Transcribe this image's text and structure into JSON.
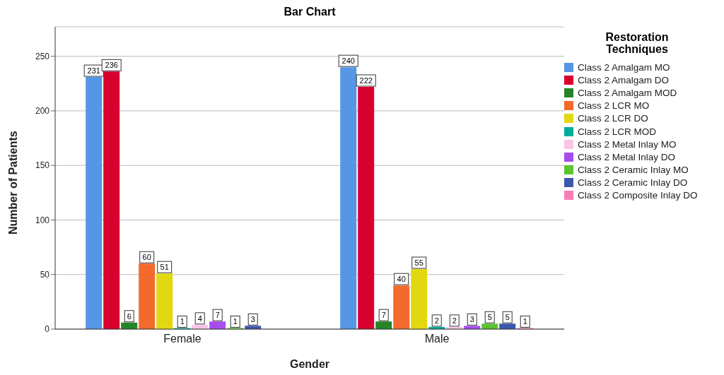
{
  "chart_data": {
    "type": "bar",
    "title": "Bar Chart",
    "xlabel": "Gender",
    "ylabel": "Number of Patients",
    "legend_title": "Restoration Techniques",
    "categories": [
      "Female",
      "Male"
    ],
    "series": [
      {
        "name": "Class 2 Amalgam MO",
        "color": "#5596e6",
        "values": [
          231,
          240
        ]
      },
      {
        "name": "Class 2 Amalgam DO",
        "color": "#d8002f",
        "values": [
          236,
          222
        ]
      },
      {
        "name": "Class 2 Amalgam MOD",
        "color": "#258427",
        "values": [
          6,
          7
        ]
      },
      {
        "name": "Class 2 LCR MO",
        "color": "#f46a2c",
        "values": [
          60,
          40
        ]
      },
      {
        "name": "Class 2 LCR DO",
        "color": "#e2d80f",
        "values": [
          51,
          55
        ]
      },
      {
        "name": "Class 2 LCR MOD",
        "color": "#02ad9b",
        "values": [
          1,
          2
        ]
      },
      {
        "name": "Class 2 Metal Inlay MO",
        "color": "#fbc4e6",
        "values": [
          4,
          2
        ]
      },
      {
        "name": "Class 2 Metal Inlay DO",
        "color": "#a84cf0",
        "values": [
          7,
          3
        ]
      },
      {
        "name": "Class 2 Ceramic Inlay MO",
        "color": "#5ac42f",
        "values": [
          1,
          5
        ]
      },
      {
        "name": "Class 2 Ceramic Inlay DO",
        "color": "#3d58ab",
        "values": [
          3,
          5
        ]
      },
      {
        "name": "Class 2 Composite Inlay DO",
        "color": "#fb7eb3",
        "values": [
          null,
          1
        ]
      }
    ],
    "ylim": [
      0,
      277
    ],
    "yticks": [
      0,
      50,
      100,
      150,
      200,
      250
    ],
    "grid": "y",
    "legend": "right",
    "data_labels": true
  }
}
